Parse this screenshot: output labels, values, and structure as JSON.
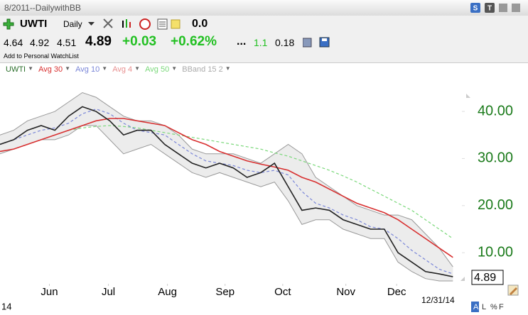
{
  "window": {
    "title": "8/2011--DailywithBB"
  },
  "toolbar": {
    "symbol": "UWTI",
    "period": "Daily",
    "value": "0.0"
  },
  "quote": {
    "open": "4.64",
    "high": "4.92",
    "low": "4.51",
    "last": "4.89",
    "change": "+0.03",
    "change_pct": "+0.62%",
    "dots": "...",
    "volume": "1.1",
    "other": "0.18"
  },
  "watchlist_link": "Add to Personal WatchList",
  "indicators": [
    {
      "label": "UWTI",
      "color": "#2a6e2a"
    },
    {
      "label": "Avg 30",
      "color": "#d83030"
    },
    {
      "label": "Avg 10",
      "color": "#7a86d8"
    },
    {
      "label": "Avg 4",
      "color": "#e89090"
    },
    {
      "label": "Avg 50",
      "color": "#7ad87a"
    },
    {
      "label": "BBand 15 2",
      "color": "#aaaaaa"
    }
  ],
  "chart_data": {
    "type": "line",
    "xlim": [
      0,
      33.5
    ],
    "xticks": [
      {
        "value": 3.6,
        "label": "Jun"
      },
      {
        "value": 7.9,
        "label": "Jul"
      },
      {
        "value": 12.2,
        "label": "Aug"
      },
      {
        "value": 16.4,
        "label": "Sep"
      },
      {
        "value": 20.6,
        "label": "Oct"
      },
      {
        "value": 25.2,
        "label": "Nov"
      },
      {
        "value": 28.9,
        "label": "Dec"
      }
    ],
    "ylim": [
      3.4,
      50.1
    ],
    "yticks": [
      {
        "value": 10,
        "label": "10.00"
      },
      {
        "value": 20,
        "label": "20.00"
      },
      {
        "value": 30,
        "label": "30.00"
      },
      {
        "value": 40,
        "label": "40.00"
      }
    ],
    "band": {
      "upper": [
        35,
        36,
        38,
        39,
        40,
        42,
        44,
        43,
        41,
        39,
        38,
        38,
        37,
        35,
        32,
        31,
        31,
        31,
        30,
        29,
        31,
        33,
        31,
        26,
        24,
        22,
        20,
        19,
        18,
        18,
        17,
        14,
        11,
        7
      ],
      "lower": [
        31,
        32,
        33,
        34,
        34,
        35,
        37,
        37,
        34,
        31,
        32,
        33,
        31,
        29,
        27,
        26,
        27,
        26,
        25,
        24,
        25,
        21,
        16,
        17,
        17,
        15,
        14,
        13,
        13,
        8,
        6,
        4.5,
        4,
        4
      ],
      "color": "#ececec"
    },
    "series": [
      {
        "name": "Avg 50",
        "color": "#7ad87a",
        "dash": true,
        "values": [
          null,
          null,
          null,
          null,
          null,
          36,
          36.5,
          36.8,
          37,
          36.8,
          36.5,
          36,
          35.5,
          35,
          34.5,
          34,
          33.5,
          33,
          32.5,
          32,
          31.2,
          30.5,
          29.5,
          28.5,
          27.5,
          26.3,
          25,
          23.5,
          22,
          20.5,
          19,
          17,
          15,
          13
        ]
      },
      {
        "name": "Avg 10",
        "color": "#7a86d8",
        "dash": true,
        "values": [
          33,
          34,
          35,
          36,
          36.5,
          37.5,
          39.5,
          40.5,
          39.5,
          37.5,
          36,
          35.5,
          35,
          33,
          31,
          29.5,
          29,
          28.5,
          27.5,
          27,
          27.5,
          26.5,
          23,
          20.5,
          19.5,
          18,
          17,
          15.5,
          15,
          13,
          10.5,
          8.5,
          6.5,
          5.5
        ]
      },
      {
        "name": "Avg 30",
        "color": "#d83030",
        "dash": false,
        "values": [
          31.5,
          32,
          33,
          34,
          35,
          36,
          37,
          38,
          38.5,
          38.5,
          38,
          37.5,
          37,
          35.5,
          34,
          33,
          31.5,
          30.5,
          29.5,
          28.8,
          28.2,
          27.5,
          26,
          25,
          23.5,
          22,
          20.5,
          19.5,
          18.5,
          17,
          15,
          13,
          11,
          9
        ]
      },
      {
        "name": "UWTI",
        "color": "#222222",
        "dash": false,
        "values": [
          33,
          34,
          36,
          37,
          36,
          39,
          41,
          40,
          38,
          35,
          36,
          36,
          33,
          31,
          29,
          28,
          29,
          28,
          26,
          27,
          29,
          24,
          19,
          19.5,
          19,
          17,
          16,
          15,
          15,
          10,
          8,
          6,
          5.5,
          4.9
        ]
      }
    ]
  },
  "date_label": "12/31/14",
  "year_label": "14",
  "buttons": [
    "A",
    "L",
    "%",
    "F"
  ]
}
